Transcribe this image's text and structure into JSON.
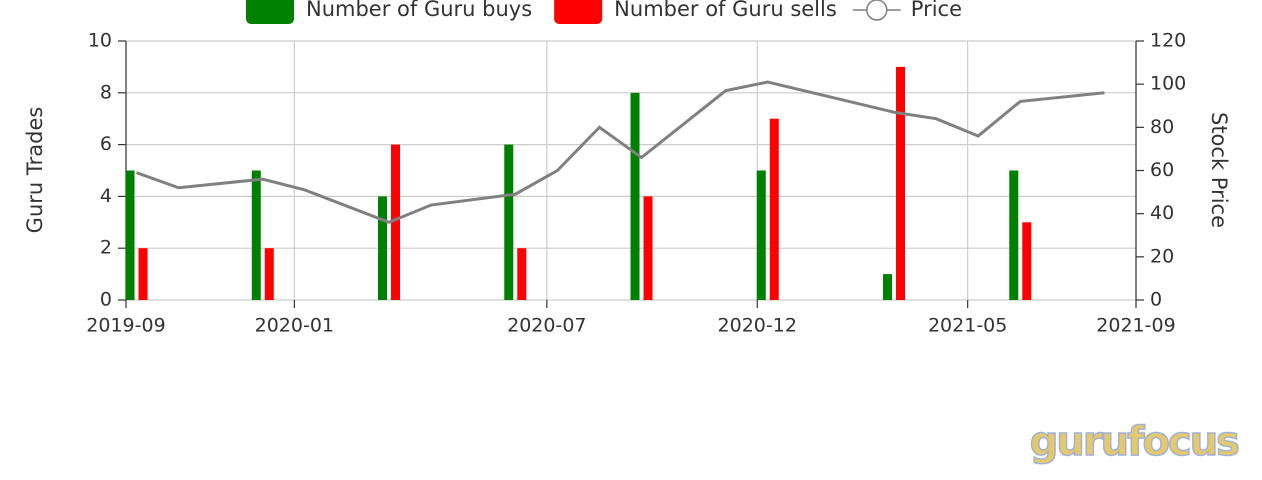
{
  "chart_data": {
    "type": "bar",
    "y_label": "Guru Trades",
    "y2_label": "Stock Price",
    "x": [
      "2019-09",
      "2019-12",
      "2020-03",
      "2020-06",
      "2020-09",
      "2020-12",
      "2021-03",
      "2021-06"
    ],
    "series": [
      {
        "name": "Number of Guru buys",
        "type": "bar",
        "color": "#008000",
        "values": [
          5,
          5,
          4,
          6,
          8,
          5,
          1,
          5
        ]
      },
      {
        "name": "Number of Guru sells",
        "type": "bar",
        "color": "#ff0000",
        "values": [
          2,
          2,
          6,
          2,
          4,
          7,
          9,
          3
        ]
      },
      {
        "name": "Price",
        "type": "line",
        "axis": "y2",
        "color": "#808080",
        "x": [
          "2019-09",
          "2019-10",
          "2019-12",
          "2020-01",
          "2020-03",
          "2020-04",
          "2020-06",
          "2020-07",
          "2020-08",
          "2020-09",
          "2020-11",
          "2020-12",
          "2021-03",
          "2021-04",
          "2021-05",
          "2021-06",
          "2021-08"
        ],
        "values": [
          59,
          52,
          56,
          51,
          36,
          44,
          49,
          60,
          80,
          66,
          97,
          101,
          87,
          84,
          76,
          92,
          96
        ]
      }
    ],
    "xlim": [
      "2019-09",
      "2021-09"
    ],
    "xticks": [
      "2019-09",
      "2020-01",
      "2020-07",
      "2020-12",
      "2021-05",
      "2021-09"
    ],
    "ylim": [
      0,
      10
    ],
    "yticks": [
      0,
      2,
      4,
      6,
      8,
      10
    ],
    "y2lim": [
      0,
      120
    ],
    "y2ticks": [
      0,
      20,
      40,
      60,
      80,
      100,
      120
    ],
    "grid": true,
    "legend": "top",
    "watermark": "gurufocus"
  }
}
